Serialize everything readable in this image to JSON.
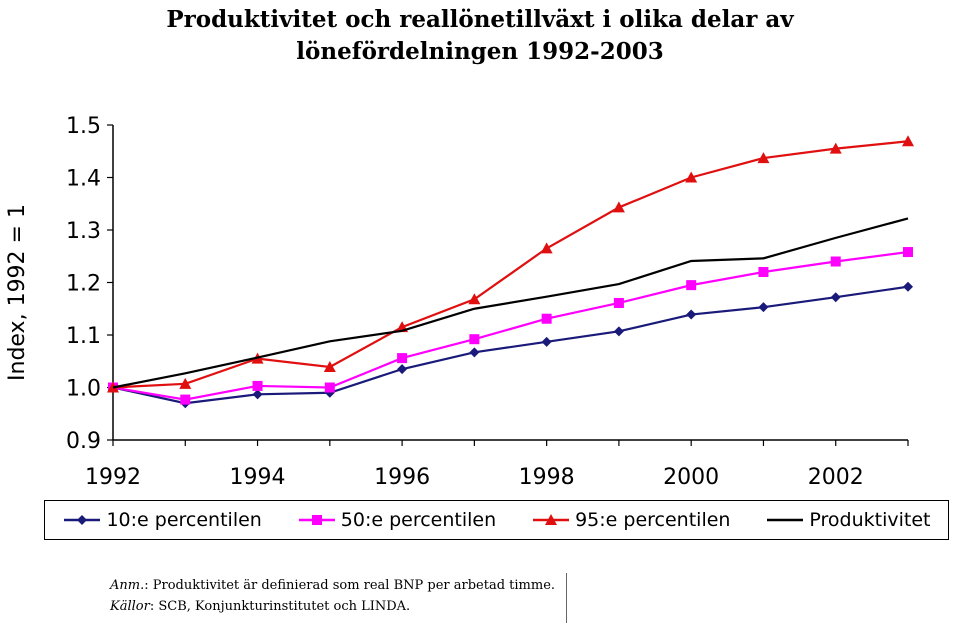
{
  "chart_data": {
    "type": "line",
    "title_line1": "Produktivitet och reallönetillväxt i olika delar av",
    "title_line2": "lönefördelningen 1992-2003",
    "xlabel": "",
    "ylabel": "Index, 1992 = 1",
    "x": [
      1992,
      1993,
      1994,
      1995,
      1996,
      1997,
      1998,
      1999,
      2000,
      2001,
      2002,
      2003
    ],
    "xticks": [
      "1992",
      "1994",
      "1996",
      "1998",
      "2000",
      "2002"
    ],
    "yticks": [
      "0.9",
      "1.0",
      "1.1",
      "1.2",
      "1.3",
      "1.4",
      "1.5"
    ],
    "ylim": [
      0.9,
      1.5
    ],
    "xlim": [
      1992,
      2003
    ],
    "grid": false,
    "legend_position": "bottom",
    "series": [
      {
        "name": "10:e percentilen",
        "color": "#1a1a7a",
        "marker": "diamond",
        "values": [
          1.0,
          0.97,
          0.987,
          0.99,
          1.035,
          1.067,
          1.087,
          1.107,
          1.139,
          1.153,
          1.172,
          1.192
        ]
      },
      {
        "name": "50:e percentilen",
        "color": "#ff00ff",
        "marker": "square",
        "values": [
          1.0,
          0.977,
          1.003,
          1.0,
          1.056,
          1.092,
          1.131,
          1.161,
          1.195,
          1.22,
          1.24,
          1.258
        ]
      },
      {
        "name": "95:e percentilen",
        "color": "#e01010",
        "marker": "triangle",
        "values": [
          1.0,
          1.007,
          1.055,
          1.039,
          1.115,
          1.168,
          1.265,
          1.343,
          1.4,
          1.437,
          1.455,
          1.469
        ]
      },
      {
        "name": "Produktivitet",
        "color": "#000000",
        "marker": "none",
        "values": [
          1.0,
          1.027,
          1.057,
          1.088,
          1.108,
          1.15,
          1.173,
          1.197,
          1.241,
          1.246,
          1.285,
          1.322
        ]
      }
    ]
  },
  "notes": {
    "anm_label": "Anm.",
    "anm_text": ": Produktivitet är definierad som real BNP per arbetad timme.",
    "kallor_label": "Källor",
    "kallor_text": ": SCB, Konjunkturinstitutet och LINDA."
  }
}
